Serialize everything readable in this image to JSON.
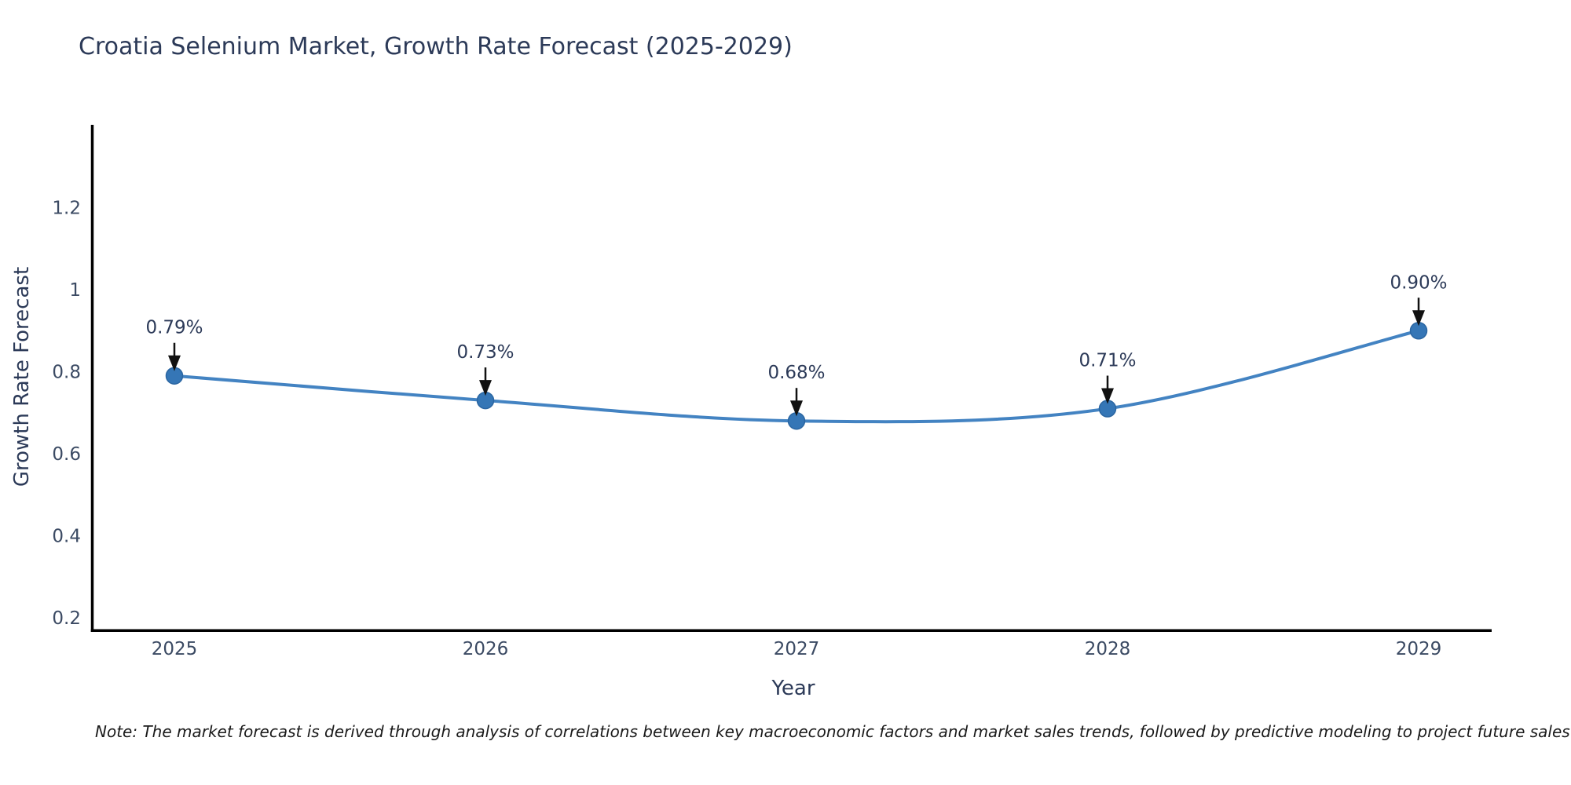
{
  "page": {
    "background": "#ffffff"
  },
  "chart_data": {
    "type": "line",
    "title": "Croatia Selenium Market, Growth Rate Forecast (2025-2029)",
    "xlabel": "Year",
    "ylabel": "Growth Rate Forecast",
    "categories": [
      2025,
      2026,
      2027,
      2028,
      2029
    ],
    "series": [
      {
        "name": "Growth Rate Forecast",
        "values": [
          0.79,
          0.73,
          0.68,
          0.71,
          0.9
        ]
      }
    ],
    "point_labels": [
      "0.79%",
      "0.73%",
      "0.68%",
      "0.71%",
      "0.90%"
    ],
    "ytick_labels": [
      "0.2",
      "0.4",
      "0.6",
      "0.8",
      "1",
      "1.2"
    ],
    "ytick_values": [
      0.2,
      0.4,
      0.6,
      0.8,
      1.0,
      1.2
    ],
    "ylim": [
      0.17,
      1.4
    ],
    "line_shape": "spline",
    "grid": false,
    "legend": false,
    "colors": {
      "line": "#4383c2",
      "marker": "#3576b6",
      "marker_edge": "#2b66a2",
      "axis": "#000000",
      "title_text": "#2c3a58",
      "tick_text": "#3b4a63",
      "annotation_arrow": "#111111",
      "note_text": "#1a1a1a"
    },
    "note": "Note: The market forecast is derived through analysis of correlations between key macroeconomic factors and market sales trends, followed by predictive modeling to project future sales"
  }
}
